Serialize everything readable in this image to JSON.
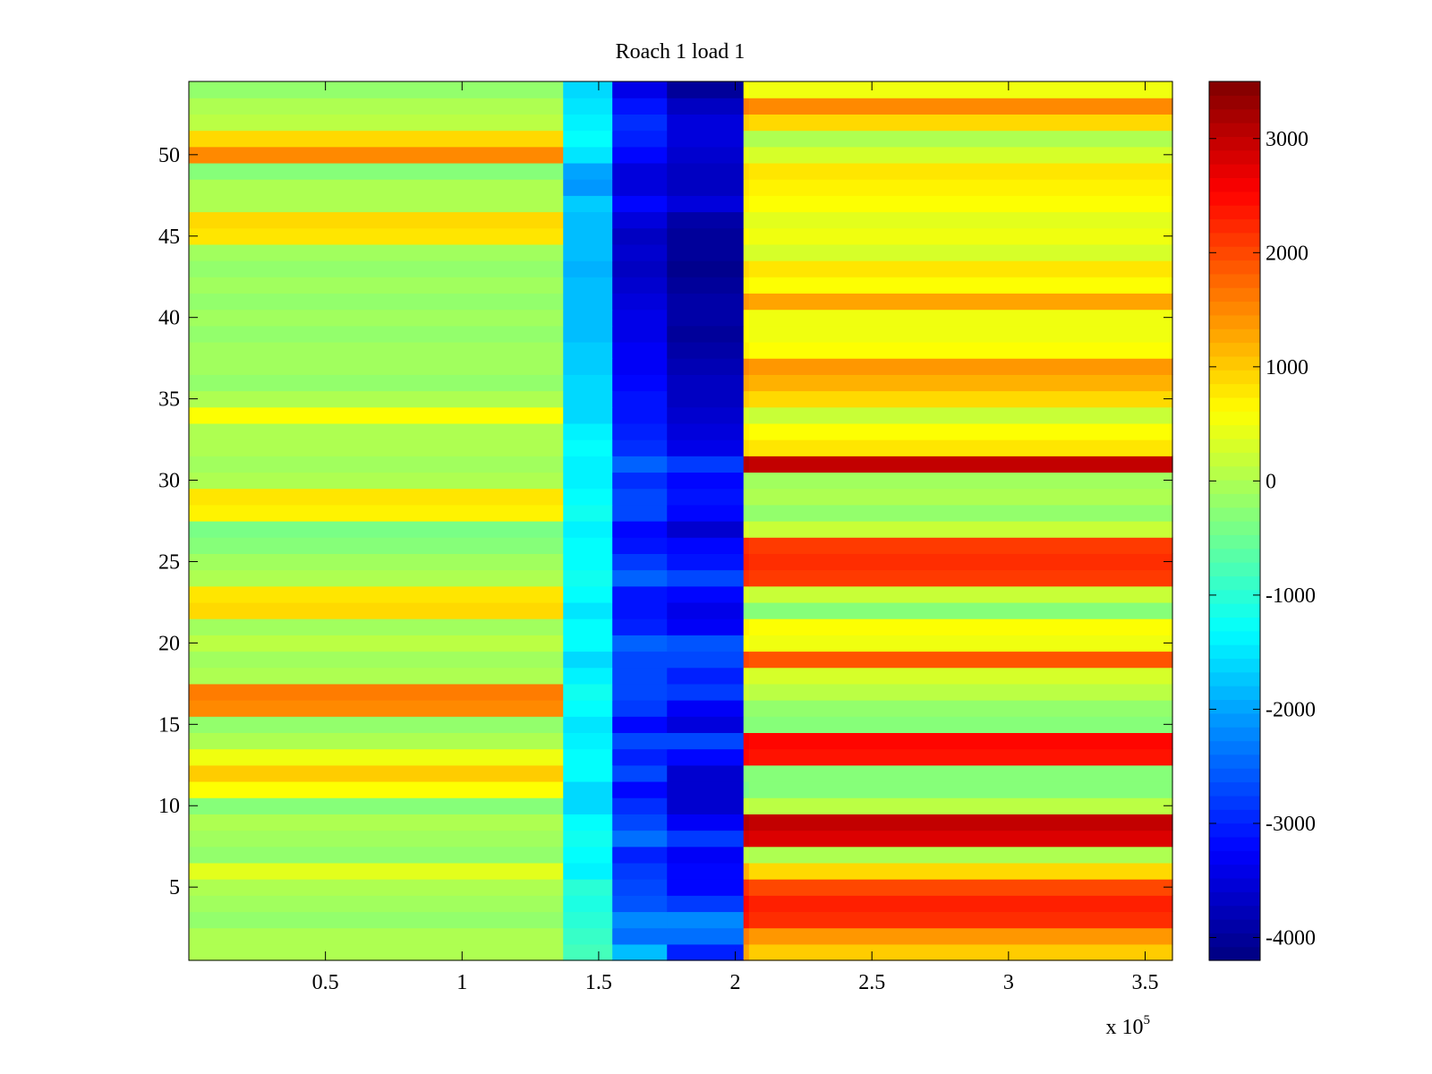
{
  "chart_data": {
    "type": "heatmap",
    "title": "Roach 1 load 1",
    "xlabel": "",
    "ylabel": "",
    "x_range": [
      0,
      360000
    ],
    "y_range": [
      0.5,
      54.5
    ],
    "rows": 54,
    "x_multiplier_label": {
      "base": "x 10",
      "exponent": "5"
    },
    "x_ticks": [
      {
        "value": 50000,
        "label": "0.5"
      },
      {
        "value": 100000,
        "label": "1"
      },
      {
        "value": 150000,
        "label": "1.5"
      },
      {
        "value": 200000,
        "label": "2"
      },
      {
        "value": 250000,
        "label": "2.5"
      },
      {
        "value": 300000,
        "label": "3"
      },
      {
        "value": 350000,
        "label": "3.5"
      }
    ],
    "y_ticks": [
      5,
      10,
      15,
      20,
      25,
      30,
      35,
      40,
      45,
      50
    ],
    "colorbar": {
      "colormap": "jet",
      "range": [
        -4200,
        3500
      ],
      "ticks": [
        {
          "value": 3000,
          "label": "3000"
        },
        {
          "value": 2000,
          "label": "2000"
        },
        {
          "value": 1000,
          "label": "1000"
        },
        {
          "value": 0,
          "label": "0"
        },
        {
          "value": -1000,
          "label": "-1000"
        },
        {
          "value": -2000,
          "label": "-2000"
        },
        {
          "value": -3000,
          "label": "-3000"
        },
        {
          "value": -4000,
          "label": "-4000"
        }
      ]
    },
    "segment_boundaries_x": [
      0,
      137000,
      155000,
      175000,
      203000,
      205000,
      360000
    ],
    "row_values": [
      [
        0,
        -800,
        -1800,
        -3000,
        1300,
        1000
      ],
      [
        0,
        -900,
        -2400,
        -2400,
        1600,
        1400
      ],
      [
        -200,
        -1000,
        -2200,
        -2200,
        2400,
        2200
      ],
      [
        -100,
        -1100,
        -2600,
        -2800,
        2500,
        2300
      ],
      [
        0,
        -1000,
        -2700,
        -3200,
        2200,
        2000
      ],
      [
        400,
        -1400,
        -2800,
        -3200,
        1200,
        900
      ],
      [
        -200,
        -1300,
        -3000,
        -3300,
        100,
        0
      ],
      [
        -100,
        -1200,
        -2400,
        -2800,
        2900,
        2800
      ],
      [
        0,
        -1300,
        -2700,
        -3300,
        3100,
        3000
      ],
      [
        -300,
        -1600,
        -2900,
        -3600,
        200,
        100
      ],
      [
        600,
        -1600,
        -3200,
        -3600,
        -400,
        -300
      ],
      [
        1000,
        -1300,
        -2700,
        -3600,
        -300,
        -300
      ],
      [
        500,
        -1300,
        -3000,
        -3200,
        2500,
        2400
      ],
      [
        0,
        -1400,
        -2700,
        -2700,
        2600,
        2500
      ],
      [
        -200,
        -1500,
        -3200,
        -3500,
        -300,
        -300
      ],
      [
        1500,
        -1300,
        -2800,
        -3300,
        -200,
        -200
      ],
      [
        1600,
        -1200,
        -2700,
        -2800,
        200,
        100
      ],
      [
        0,
        -1400,
        -2700,
        -3000,
        400,
        300
      ],
      [
        -100,
        -1600,
        -2700,
        -2700,
        2000,
        1900
      ],
      [
        100,
        -1300,
        -2500,
        -2600,
        600,
        500
      ],
      [
        -100,
        -1300,
        -3000,
        -3300,
        700,
        600
      ],
      [
        900,
        -1500,
        -3100,
        -3400,
        -300,
        -300
      ],
      [
        800,
        -1300,
        -3100,
        -3200,
        300,
        200
      ],
      [
        0,
        -1200,
        -2500,
        -2700,
        2200,
        2100
      ],
      [
        -100,
        -1300,
        -2800,
        -3100,
        2300,
        2200
      ],
      [
        -300,
        -1300,
        -3100,
        -3200,
        2200,
        2100
      ],
      [
        -400,
        -1400,
        -3200,
        -3600,
        300,
        200
      ],
      [
        700,
        -1200,
        -2700,
        -3200,
        -200,
        -200
      ],
      [
        800,
        -1300,
        -2700,
        -3100,
        0,
        0
      ],
      [
        0,
        -1400,
        -2900,
        -3200,
        -100,
        -100
      ],
      [
        -100,
        -1400,
        -2500,
        -2800,
        3100,
        3000
      ],
      [
        0,
        -1300,
        -2900,
        -3400,
        900,
        800
      ],
      [
        0,
        -1400,
        -3000,
        -3500,
        700,
        600
      ],
      [
        600,
        -1600,
        -3100,
        -3600,
        300,
        200
      ],
      [
        0,
        -1600,
        -3100,
        -3700,
        1000,
        900
      ],
      [
        -200,
        -1600,
        -3200,
        -3700,
        1300,
        1200
      ],
      [
        -100,
        -1700,
        -3300,
        -3800,
        1500,
        1400
      ],
      [
        -100,
        -1700,
        -3300,
        -3900,
        700,
        600
      ],
      [
        -200,
        -1800,
        -3400,
        -4000,
        600,
        500
      ],
      [
        -100,
        -1800,
        -3400,
        -3900,
        600,
        500
      ],
      [
        -200,
        -1800,
        -3500,
        -3900,
        1400,
        1300
      ],
      [
        -100,
        -1800,
        -3600,
        -4000,
        700,
        600
      ],
      [
        -200,
        -1900,
        -3700,
        -4100,
        900,
        800
      ],
      [
        -100,
        -1800,
        -3600,
        -4000,
        300,
        300
      ],
      [
        800,
        -1800,
        -3700,
        -4000,
        600,
        500
      ],
      [
        900,
        -1800,
        -3500,
        -3900,
        400,
        400
      ],
      [
        0,
        -1700,
        -3200,
        -3500,
        700,
        600
      ],
      [
        0,
        -2100,
        -3500,
        -3700,
        800,
        700
      ],
      [
        -300,
        -2000,
        -3500,
        -3700,
        900,
        800
      ],
      [
        1500,
        -1500,
        -3200,
        -3600,
        400,
        300
      ],
      [
        900,
        -1300,
        -3000,
        -3500,
        0,
        0
      ],
      [
        100,
        -1400,
        -2900,
        -3500,
        1000,
        900
      ],
      [
        0,
        -1500,
        -3100,
        -3700,
        1600,
        1500
      ],
      [
        -200,
        -1600,
        -3400,
        -4000,
        600,
        500
      ]
    ]
  }
}
